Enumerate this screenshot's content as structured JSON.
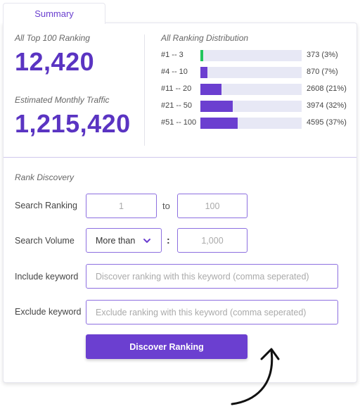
{
  "tab": {
    "label": "Summary"
  },
  "summary": {
    "top100": {
      "label": "All Top 100 Ranking",
      "value": "12,420"
    },
    "traffic": {
      "label": "Estimated Monthly Traffic",
      "value": "1,215,420"
    }
  },
  "distribution": {
    "title": "All Ranking Distribution",
    "rows": [
      {
        "range": "#1 -- 3",
        "count": "373 (3%)",
        "fraction": 0.03,
        "color": "#22c55e"
      },
      {
        "range": "#4 -- 10",
        "count": "870 (7%)",
        "fraction": 0.07,
        "color": "#6b3fd0"
      },
      {
        "range": "#11 -- 20",
        "count": "2608 (21%)",
        "fraction": 0.21,
        "color": "#6b3fd0"
      },
      {
        "range": "#21 -- 50",
        "count": "3974 (32%)",
        "fraction": 0.32,
        "color": "#6b3fd0"
      },
      {
        "range": "#51 -- 100",
        "count": "4595 (37%)",
        "fraction": 0.37,
        "color": "#6b3fd0"
      }
    ]
  },
  "rank_discovery": {
    "title": "Rank Discovery",
    "search_ranking": {
      "label": "Search Ranking",
      "from": "1",
      "to_label": "to",
      "to": "100"
    },
    "search_volume": {
      "label": "Search Volume",
      "selected": "More than",
      "separator": ":",
      "value": "1,000"
    },
    "include_keyword": {
      "label": "Include keyword",
      "placeholder": "Discover ranking with this keyword (comma seperated)"
    },
    "exclude_keyword": {
      "label": "Exclude keyword",
      "placeholder": "Exclude ranking with this keyword (comma seperated)"
    },
    "button": "Discover Ranking"
  },
  "colors": {
    "accent": "#6b3fd0",
    "value_text": "#5a34c2",
    "green": "#22c55e"
  }
}
